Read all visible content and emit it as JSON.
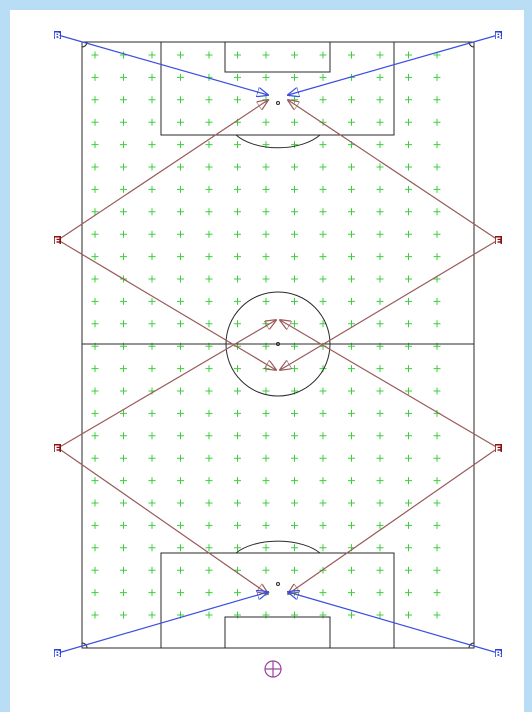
{
  "colors": {
    "background": "#b9ddf5",
    "canvas": "#ffffff",
    "pitch_lines": "#2a2a2a",
    "grid_marks": "#3ccf3c",
    "blue_lines": "#3b4fe0",
    "red_lines": "#9a5a5a",
    "blue_nodes": "#2a3fd6",
    "red_nodes": "#8a1010",
    "origin_marker": "#9b3fa0"
  },
  "nodes": {
    "blue_label": "B",
    "red_label": "E"
  },
  "icons": {
    "origin": "crosshair-circle-icon",
    "arrow": "arrowhead-icon"
  }
}
